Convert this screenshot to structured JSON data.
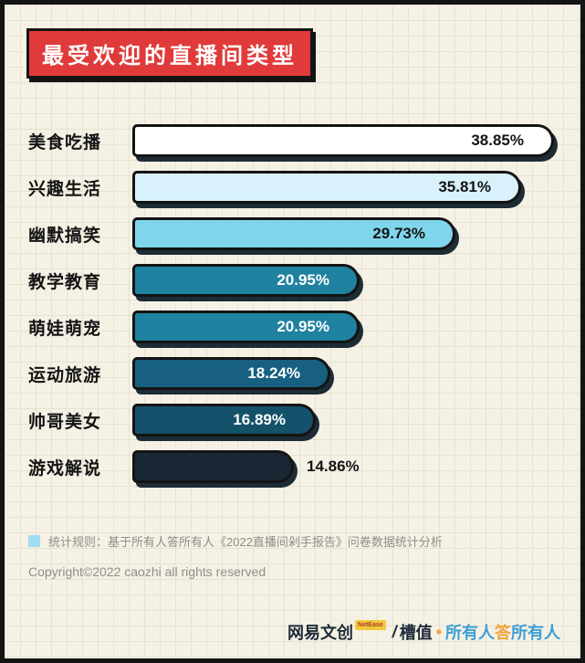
{
  "title": "最受欢迎的直播间类型",
  "chart_data": {
    "type": "bar",
    "orientation": "horizontal",
    "title": "最受欢迎的直播间类型",
    "categories": [
      "美食吃播",
      "兴趣生活",
      "幽默搞笑",
      "教学教育",
      "萌娃萌宠",
      "运动旅游",
      "帅哥美女",
      "游戏解说"
    ],
    "values": [
      38.85,
      35.81,
      29.73,
      20.95,
      20.95,
      18.24,
      16.89,
      14.86
    ],
    "labels": [
      "38.85%",
      "35.81%",
      "29.73%",
      "20.95%",
      "20.95%",
      "18.24%",
      "16.89%",
      "14.86%"
    ],
    "bar_colors": [
      "#ffffff",
      "#d8f1fa",
      "#7fd6ec",
      "#1f82a0",
      "#1f82a0",
      "#176080",
      "#14516b",
      "#182733"
    ],
    "label_colors": [
      "#141414",
      "#141414",
      "#141414",
      "#ffffff",
      "#ffffff",
      "#ffffff",
      "#ffffff",
      "#141414"
    ],
    "label_inside": [
      true,
      true,
      true,
      true,
      true,
      true,
      true,
      false
    ],
    "xlim": [
      0,
      40
    ],
    "grid": "paper-grid background",
    "legend_position": "none"
  },
  "footer": {
    "note": "统计规则：基于所有人答所有人《2022直播间剁手报告》问卷数据统计分析",
    "note_square_color": "#9edcf2",
    "copyright": "Copyright©2022 caozhi all rights reserved",
    "brand": {
      "name": "网易文创",
      "badge": "NetEase",
      "divider": "/",
      "sub": "槽值",
      "dot": "•",
      "dot_color": "#f0a43e",
      "slogan": [
        {
          "text": "所有人",
          "color": "#3d9fd6"
        },
        {
          "text": "答",
          "color": "#f0a43e"
        },
        {
          "text": "所有人",
          "color": "#3d9fd6"
        }
      ]
    }
  },
  "colors": {
    "frame_border": "#141414",
    "background": "#f5f1e5",
    "title_box": "#e03a3a",
    "bar_shadow": "#1d2c35"
  }
}
